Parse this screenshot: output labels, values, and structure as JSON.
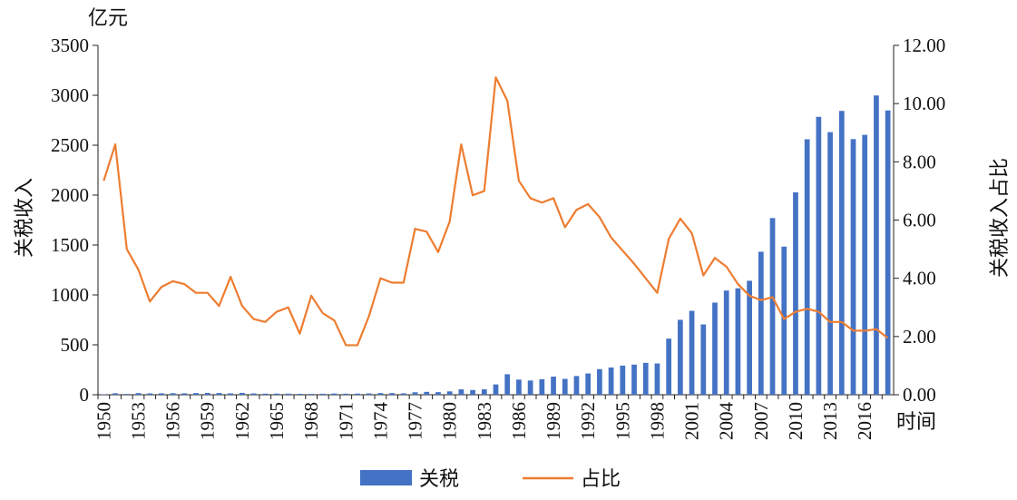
{
  "chart_data": {
    "type": "bar+line",
    "unit_left": "亿元",
    "unit_bottom_right": "时间",
    "ylabel_left": "关税收入",
    "ylabel_right": "关税收入占比",
    "ylim_left": [
      0,
      3500
    ],
    "ylim_right": [
      0,
      12
    ],
    "yticks_left": [
      "0",
      "500",
      "1000",
      "1500",
      "2000",
      "2500",
      "3000",
      "3500"
    ],
    "yticks_right": [
      "0.00",
      "2.00",
      "4.00",
      "6.00",
      "8.00",
      "10.00",
      "12.00"
    ],
    "x_tick_labels": [
      "1950",
      "1953",
      "1956",
      "1959",
      "1962",
      "1965",
      "1968",
      "1971",
      "1974",
      "1977",
      "1980",
      "1983",
      "1986",
      "1989",
      "1992",
      "1995",
      "1998",
      "2001",
      "2004",
      "2007",
      "2010",
      "2013",
      "2016"
    ],
    "years": [
      1950,
      1951,
      1952,
      1953,
      1954,
      1955,
      1956,
      1957,
      1958,
      1959,
      1960,
      1961,
      1962,
      1963,
      1964,
      1965,
      1966,
      1967,
      1968,
      1969,
      1970,
      1971,
      1972,
      1973,
      1974,
      1975,
      1976,
      1977,
      1978,
      1979,
      1980,
      1981,
      1982,
      1983,
      1984,
      1985,
      1986,
      1987,
      1988,
      1989,
      1990,
      1991,
      1992,
      1993,
      1994,
      1995,
      1996,
      1997,
      1998,
      1999,
      2000,
      2001,
      2002,
      2003,
      2004,
      2005,
      2006,
      2007,
      2008,
      2009,
      2010,
      2011,
      2012,
      2013,
      2014,
      2015,
      2016,
      2017,
      2018
    ],
    "series": [
      {
        "name": "关税",
        "type": "bar",
        "axis": "left",
        "color": "#4472C4",
        "values": [
          4.8,
          14.9,
          7.8,
          16.6,
          13.9,
          14.3,
          15.6,
          14.2,
          17.3,
          18.2,
          17.5,
          13.9,
          18.5,
          13.2,
          10.8,
          11.6,
          11.1,
          9.2,
          8.3,
          10.0,
          12.3,
          10.5,
          11.5,
          13.5,
          17.0,
          16.8,
          14.3,
          24.8,
          28.8,
          26.0,
          33.5,
          54.0,
          47.5,
          53.9,
          103.1,
          205.2,
          151.6,
          142.4,
          155.0,
          181.5,
          159.0,
          187.3,
          212.8,
          256.5,
          272.7,
          291.8,
          301.8,
          319.5,
          313.0,
          562.2,
          750.5,
          840.5,
          704.3,
          923.1,
          1043.8,
          1066.2,
          1141.8,
          1432.6,
          1769.9,
          1483.8,
          2027.8,
          2559.1,
          2783.9,
          2630.6,
          2843.4,
          2560.8,
          2603.8,
          2997.9,
          2847.8
        ]
      },
      {
        "name": "占比",
        "type": "line",
        "axis": "right",
        "color": "#ED7D31",
        "values": [
          7.35,
          8.6,
          5.0,
          4.3,
          3.2,
          3.7,
          3.9,
          3.8,
          3.5,
          3.5,
          3.05,
          4.05,
          3.05,
          2.6,
          2.5,
          2.85,
          3.0,
          2.1,
          3.4,
          2.8,
          2.55,
          1.7,
          1.7,
          2.7,
          4.0,
          3.85,
          3.85,
          5.7,
          5.6,
          4.9,
          5.95,
          8.6,
          6.85,
          7.0,
          10.9,
          10.1,
          7.35,
          6.75,
          6.6,
          6.75,
          5.75,
          6.35,
          6.55,
          6.1,
          5.4,
          4.95,
          4.5,
          4.0,
          3.5,
          5.35,
          6.05,
          5.55,
          4.1,
          4.7,
          4.4,
          3.8,
          3.4,
          3.25,
          3.35,
          2.6,
          2.85,
          2.95,
          2.85,
          2.5,
          2.5,
          2.2,
          2.2,
          2.25,
          1.95
        ]
      }
    ],
    "legend": {
      "position": "bottom",
      "entries": [
        "关税",
        "占比"
      ]
    }
  }
}
